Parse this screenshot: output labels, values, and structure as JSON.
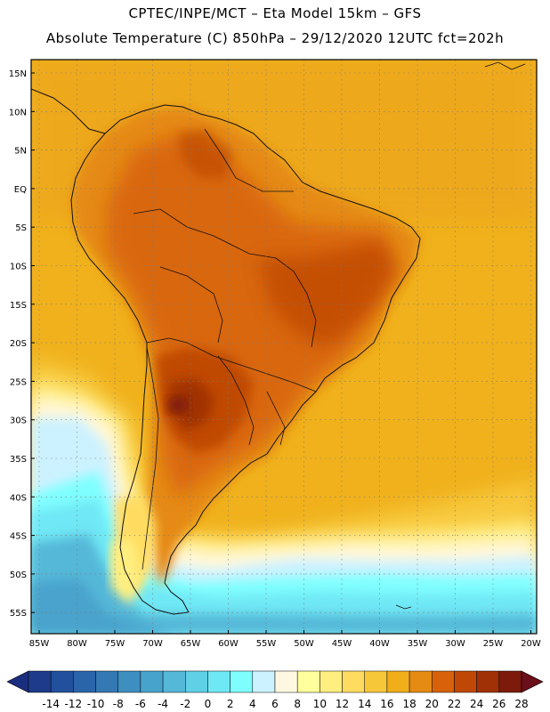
{
  "header": {
    "title_line1": "CPTEC/INPE/MCT –  Eta Model 15km – GFS",
    "title_line2": "Absolute Temperature (C) 850hPa – 29/12/2020 12UTC fct=202h"
  },
  "map": {
    "region": "South America",
    "lat_labels": [
      "15N",
      "10N",
      "5N",
      "EQ",
      "5S",
      "10S",
      "15S",
      "20S",
      "25S",
      "30S",
      "35S",
      "40S",
      "45S",
      "50S",
      "55S"
    ],
    "lon_labels": [
      "85W",
      "80W",
      "75W",
      "70W",
      "65W",
      "60W",
      "55W",
      "50W",
      "45W",
      "40W",
      "35W",
      "30W",
      "25W",
      "20W"
    ]
  },
  "colorbar": {
    "labels": [
      "-14",
      "-12",
      "-10",
      "-8",
      "-6",
      "-4",
      "-2",
      "0",
      "2",
      "4",
      "6",
      "8",
      "10",
      "12",
      "14",
      "16",
      "18",
      "20",
      "22",
      "24",
      "26",
      "28"
    ],
    "colors": [
      "#1e3a8a",
      "#22509c",
      "#2a65aa",
      "#3478b4",
      "#3e8ebf",
      "#48a3cc",
      "#55b8d8",
      "#60d0e6",
      "#6fe8f5",
      "#80ffff",
      "#ccf2ff",
      "#fff8e1",
      "#ffff9e",
      "#ffee80",
      "#ffdc60",
      "#f7c73a",
      "#f0ae1a",
      "#e58a12",
      "#d8620a",
      "#c04806",
      "#a03006",
      "#7c1a0c"
    ],
    "under_color": "#1a2e80",
    "over_color": "#6b0f1a"
  }
}
